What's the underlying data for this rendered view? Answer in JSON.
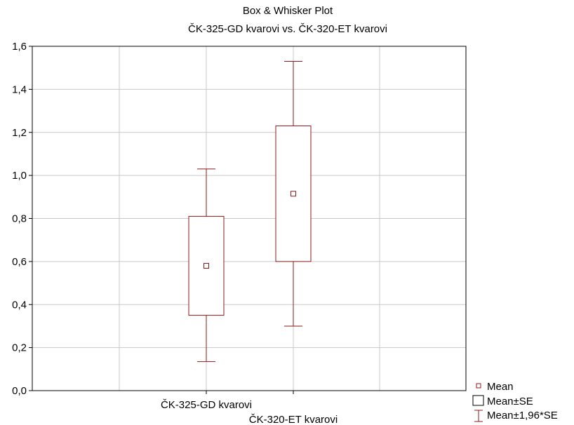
{
  "chart_data": {
    "type": "box",
    "title": "Box & Whisker Plot",
    "subtitle": "ČK-325-GD kvarovi vs. ČK-320-ET kvarovi",
    "xlabel": "",
    "ylabel": "",
    "ylim": [
      0,
      1.6
    ],
    "yticks": [
      "0,0",
      "0,2",
      "0,4",
      "0,6",
      "0,8",
      "1,0",
      "1,2",
      "1,4",
      "1,6"
    ],
    "ytick_values": [
      0,
      0.2,
      0.4,
      0.6,
      0.8,
      1.0,
      1.2,
      1.4,
      1.6
    ],
    "grid": true,
    "legend_position": "bottom-right",
    "series": [
      {
        "category": "ČK-325-GD kvarovi",
        "mean": 0.58,
        "box_low": 0.35,
        "box_high": 0.81,
        "whisker_low": 0.135,
        "whisker_high": 1.03
      },
      {
        "category": "ČK-320-ET kvarovi",
        "mean": 0.915,
        "box_low": 0.6,
        "box_high": 1.23,
        "whisker_low": 0.3,
        "whisker_high": 1.53
      }
    ],
    "legend": [
      {
        "label": "Mean",
        "symbol": "small-square"
      },
      {
        "label": "Mean±SE",
        "symbol": "box"
      },
      {
        "label": "Mean±1,96*SE",
        "symbol": "whisker"
      }
    ],
    "colors": {
      "series": "#8b1a1a",
      "grid": "#c8c8c8",
      "axis": "#000000"
    }
  }
}
